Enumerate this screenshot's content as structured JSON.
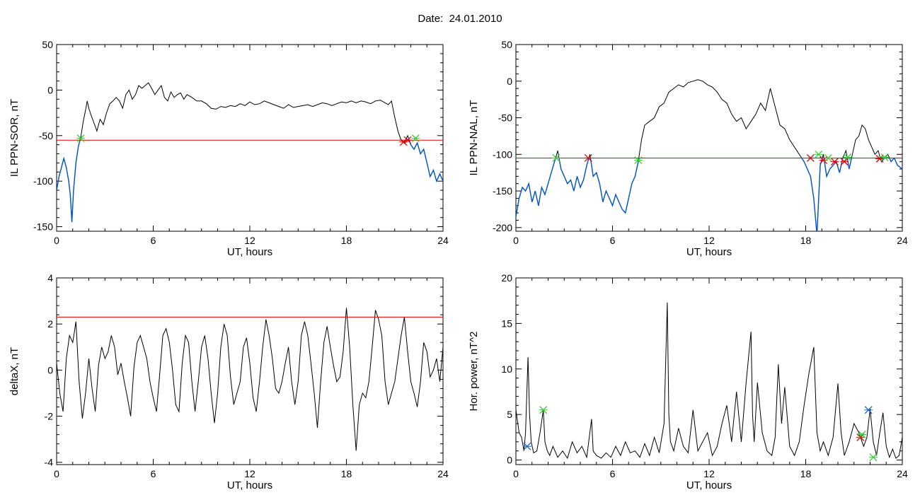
{
  "page": {
    "date_label": "Date:",
    "date_value": "24.01.2010"
  },
  "colors": {
    "frame": "#000000",
    "trace": "#000000",
    "highlight_trace": "#0055cc",
    "threshold": "#e00000",
    "marker_green": "#33cc33",
    "marker_red": "#e00000",
    "marker_blue": "#2266cc"
  },
  "chart_data": [
    {
      "type": "line",
      "ylabel": "IL PPN-SOR, nT",
      "xlabel": "UT, hours",
      "xlim": [
        0,
        24
      ],
      "ylim": [
        -155,
        50
      ],
      "xticks": [
        0,
        6,
        12,
        18,
        24
      ],
      "yticks": [
        -150,
        -100,
        -50,
        0,
        50
      ],
      "threshold": -55,
      "highlight_below_threshold": true,
      "series": [
        {
          "x": [
            0,
            0.15,
            0.3,
            0.45,
            0.6,
            0.75,
            0.85,
            0.95,
            1.05,
            1.2,
            1.35,
            1.5,
            1.65,
            1.8,
            1.9,
            2.0,
            2.15,
            2.3,
            2.5,
            2.7,
            2.9,
            3.1,
            3.3,
            3.5,
            3.7,
            3.9,
            4.1,
            4.3,
            4.5,
            4.7,
            4.9,
            5.1,
            5.3,
            5.5,
            5.7,
            5.9,
            6.1,
            6.3,
            6.5,
            6.7,
            6.9,
            7.1,
            7.3,
            7.5,
            7.7,
            7.9,
            8.1,
            8.4,
            8.7,
            9.0,
            9.3,
            9.6,
            9.9,
            10.2,
            10.5,
            10.8,
            11.1,
            11.4,
            11.7,
            12.0,
            12.3,
            12.6,
            12.9,
            13.2,
            13.5,
            13.8,
            14.1,
            14.4,
            14.7,
            15.0,
            15.3,
            15.6,
            15.9,
            16.2,
            16.5,
            16.8,
            17.1,
            17.4,
            17.7,
            18.0,
            18.3,
            18.6,
            18.9,
            19.2,
            19.5,
            19.8,
            20.1,
            20.4,
            20.6,
            20.8,
            21.0,
            21.2,
            21.4,
            21.6,
            21.8,
            22.0,
            22.2,
            22.4,
            22.6,
            22.8,
            23.0,
            23.2,
            23.4,
            23.6,
            23.8,
            24.0
          ],
          "y": [
            -110,
            -95,
            -85,
            -75,
            -85,
            -100,
            -115,
            -145,
            -110,
            -80,
            -62,
            -52,
            -35,
            -22,
            -12,
            -20,
            -28,
            -35,
            -45,
            -32,
            -38,
            -25,
            -15,
            -12,
            -8,
            -12,
            -20,
            -5,
            0,
            -10,
            -5,
            5,
            2,
            5,
            8,
            2,
            -5,
            0,
            5,
            -8,
            -12,
            -2,
            -8,
            -5,
            -3,
            -10,
            -5,
            -8,
            -12,
            -12,
            -15,
            -20,
            -21,
            -18,
            -19,
            -17,
            -18,
            -15,
            -17,
            -13,
            -16,
            -15,
            -12,
            -14,
            -16,
            -18,
            -20,
            -16,
            -19,
            -18,
            -17,
            -16,
            -18,
            -16,
            -14,
            -15,
            -17,
            -15,
            -13,
            -14,
            -12,
            -14,
            -12,
            -13,
            -15,
            -12,
            -11,
            -14,
            -16,
            -12,
            -30,
            -45,
            -55,
            -58,
            -50,
            -60,
            -65,
            -58,
            -70,
            -65,
            -80,
            -95,
            -88,
            -100,
            -92,
            -100
          ]
        }
      ],
      "markers": [
        {
          "x": 1.5,
          "y": -53,
          "color": "green"
        },
        {
          "x": 21.55,
          "y": -57,
          "color": "red"
        },
        {
          "x": 21.8,
          "y": -55,
          "color": "red"
        },
        {
          "x": 22.3,
          "y": -53,
          "color": "green"
        }
      ]
    },
    {
      "type": "line",
      "ylabel": "IL PPN-NAL, nT",
      "xlabel": "UT, hours",
      "xlim": [
        0,
        24
      ],
      "ylim": [
        -205,
        50
      ],
      "xticks": [
        0,
        6,
        12,
        18,
        24
      ],
      "yticks": [
        -200,
        -150,
        -100,
        -50,
        0,
        50
      ],
      "threshold": -105,
      "highlight_below_threshold": true,
      "series": [
        {
          "x": [
            0,
            0.2,
            0.4,
            0.6,
            0.8,
            1.0,
            1.2,
            1.4,
            1.6,
            1.8,
            2.0,
            2.2,
            2.4,
            2.6,
            2.8,
            3.0,
            3.2,
            3.4,
            3.6,
            3.8,
            4.0,
            4.2,
            4.4,
            4.6,
            4.8,
            5.0,
            5.2,
            5.4,
            5.6,
            5.8,
            6.0,
            6.2,
            6.4,
            6.6,
            6.8,
            7.0,
            7.2,
            7.4,
            7.6,
            7.8,
            8.0,
            8.3,
            8.6,
            8.9,
            9.2,
            9.5,
            9.8,
            10.1,
            10.4,
            10.7,
            11.0,
            11.3,
            11.6,
            11.9,
            12.2,
            12.5,
            12.8,
            13.1,
            13.4,
            13.7,
            14.0,
            14.3,
            14.6,
            14.9,
            15.2,
            15.5,
            15.8,
            16.1,
            16.4,
            16.7,
            17.0,
            17.3,
            17.6,
            17.9,
            18.1,
            18.3,
            18.5,
            18.7,
            18.9,
            19.1,
            19.3,
            19.5,
            19.7,
            19.9,
            20.1,
            20.3,
            20.5,
            20.7,
            20.9,
            21.1,
            21.3,
            21.5,
            21.7,
            21.9,
            22.1,
            22.3,
            22.5,
            22.7,
            22.9,
            23.1,
            23.3,
            23.5,
            23.7,
            24.0
          ],
          "y": [
            -185,
            -160,
            -145,
            -150,
            -140,
            -165,
            -150,
            -170,
            -145,
            -155,
            -140,
            -125,
            -110,
            -95,
            -120,
            -130,
            -140,
            -135,
            -150,
            -130,
            -145,
            -135,
            -115,
            -100,
            -130,
            -125,
            -140,
            -165,
            -150,
            -160,
            -170,
            -155,
            -165,
            -175,
            -180,
            -160,
            -140,
            -130,
            -110,
            -80,
            -60,
            -55,
            -50,
            -35,
            -30,
            -15,
            -10,
            -5,
            -8,
            -2,
            0,
            2,
            0,
            -5,
            -8,
            -15,
            -25,
            -30,
            -45,
            -55,
            -50,
            -65,
            -55,
            -45,
            -30,
            -40,
            -10,
            -35,
            -60,
            -65,
            -80,
            -90,
            -100,
            -110,
            -120,
            -130,
            -160,
            -210,
            -115,
            -100,
            -130,
            -120,
            -115,
            -110,
            -125,
            -105,
            -95,
            -120,
            -100,
            -80,
            -75,
            -60,
            -65,
            -80,
            -90,
            -100,
            -95,
            -110,
            -105,
            -100,
            -110,
            -105,
            -115,
            -120
          ]
        }
      ],
      "markers": [
        {
          "x": 2.5,
          "y": -105,
          "color": "green"
        },
        {
          "x": 4.5,
          "y": -105,
          "color": "red"
        },
        {
          "x": 7.6,
          "y": -108,
          "color": "green"
        },
        {
          "x": 18.3,
          "y": -105,
          "color": "red"
        },
        {
          "x": 18.8,
          "y": -100,
          "color": "green"
        },
        {
          "x": 19.1,
          "y": -108,
          "color": "red"
        },
        {
          "x": 19.4,
          "y": -105,
          "color": "green"
        },
        {
          "x": 19.8,
          "y": -110,
          "color": "red"
        },
        {
          "x": 20.4,
          "y": -110,
          "color": "red"
        },
        {
          "x": 20.6,
          "y": -104,
          "color": "green"
        },
        {
          "x": 22.6,
          "y": -106,
          "color": "red"
        },
        {
          "x": 22.9,
          "y": -104,
          "color": "green"
        }
      ]
    },
    {
      "type": "line",
      "ylabel": "deltaX, nT",
      "xlabel": "UT, hours",
      "xlim": [
        0,
        24
      ],
      "ylim": [
        -4.1,
        4
      ],
      "xticks": [
        0,
        6,
        12,
        18,
        24
      ],
      "yticks": [
        -4,
        -2,
        0,
        2,
        4
      ],
      "threshold": 2.3,
      "highlight_below_threshold": false,
      "series": [
        {
          "x": [
            0,
            0.2,
            0.4,
            0.6,
            0.8,
            1.0,
            1.2,
            1.4,
            1.6,
            1.8,
            2.0,
            2.2,
            2.4,
            2.6,
            2.8,
            3.0,
            3.2,
            3.4,
            3.6,
            3.8,
            4.0,
            4.2,
            4.4,
            4.6,
            4.8,
            5.0,
            5.2,
            5.4,
            5.6,
            5.8,
            6.0,
            6.2,
            6.4,
            6.6,
            6.8,
            7.0,
            7.2,
            7.4,
            7.6,
            7.8,
            8.0,
            8.2,
            8.4,
            8.6,
            8.8,
            9.0,
            9.2,
            9.4,
            9.6,
            9.8,
            10.0,
            10.2,
            10.4,
            10.6,
            10.8,
            11.0,
            11.2,
            11.4,
            11.6,
            11.8,
            12.0,
            12.2,
            12.4,
            12.6,
            12.8,
            13.0,
            13.2,
            13.4,
            13.6,
            13.8,
            14.0,
            14.2,
            14.4,
            14.6,
            14.8,
            15.0,
            15.2,
            15.4,
            15.6,
            15.8,
            16.0,
            16.2,
            16.4,
            16.6,
            16.8,
            17.0,
            17.2,
            17.4,
            17.6,
            17.8,
            18.0,
            18.2,
            18.4,
            18.6,
            18.8,
            19.0,
            19.2,
            19.4,
            19.6,
            19.8,
            20.0,
            20.2,
            20.4,
            20.6,
            20.8,
            21.0,
            21.2,
            21.4,
            21.6,
            21.8,
            22.0,
            22.2,
            22.4,
            22.6,
            22.8,
            23.0,
            23.2,
            23.4,
            23.6,
            23.8,
            24.0
          ],
          "y": [
            0.3,
            -1.0,
            -1.8,
            0.5,
            1.5,
            1.2,
            2.1,
            -0.5,
            -2.1,
            -1.0,
            0.5,
            -0.8,
            -1.8,
            0.2,
            1.0,
            0.5,
            0.8,
            1.5,
            1.0,
            -0.2,
            0.3,
            -0.5,
            -1.2,
            -2.0,
            0.1,
            1.2,
            1.5,
            1.0,
            0.5,
            -0.5,
            -1.2,
            -1.8,
            -0.2,
            1.5,
            1.8,
            1.2,
            0.0,
            -1.5,
            -1.8,
            0.3,
            1.5,
            1.2,
            -0.5,
            -1.8,
            -0.5,
            1.0,
            1.5,
            0.5,
            -1.0,
            -2.3,
            -1.0,
            1.0,
            2.0,
            1.5,
            -0.3,
            -1.5,
            -1.0,
            -0.5,
            1.0,
            1.4,
            0.3,
            -1.2,
            -1.8,
            -0.5,
            1.0,
            2.2,
            1.5,
            0.5,
            -0.8,
            -1.0,
            -0.5,
            0.3,
            1.0,
            -0.5,
            -1.5,
            -0.5,
            1.5,
            2.1,
            1.5,
            0.3,
            -1.0,
            -2.5,
            -0.5,
            1.2,
            1.9,
            1.0,
            0.2,
            -0.5,
            -0.3,
            0.8,
            2.7,
            1.0,
            -1.5,
            -3.5,
            -1.5,
            -1.0,
            -1.2,
            -0.5,
            1.0,
            2.6,
            2.2,
            1.5,
            -0.5,
            -1.5,
            -1.0,
            -0.5,
            0.5,
            1.5,
            2.3,
            0.8,
            -0.5,
            -1.0,
            -1.6,
            -0.5,
            1.2,
            0.8,
            -0.3,
            0.0,
            0.5,
            -0.5,
            1.0
          ]
        }
      ],
      "markers": []
    },
    {
      "type": "line",
      "ylabel": "Hor. power, nT^2",
      "xlabel": "UT, hours",
      "xlim": [
        0,
        24
      ],
      "ylim": [
        -0.5,
        20
      ],
      "xticks": [
        0,
        6,
        12,
        18,
        24
      ],
      "yticks": [
        0,
        5,
        10,
        15,
        20
      ],
      "threshold": null,
      "highlight_below_threshold": false,
      "series": [
        {
          "x": [
            0,
            0.2,
            0.35,
            0.5,
            0.6,
            0.75,
            0.85,
            0.95,
            1.1,
            1.3,
            1.5,
            1.7,
            1.8,
            1.95,
            2.1,
            2.3,
            2.6,
            2.9,
            3.2,
            3.5,
            3.8,
            4.1,
            4.4,
            4.7,
            4.8,
            5.0,
            5.3,
            5.6,
            5.9,
            6.2,
            6.5,
            6.8,
            7.1,
            7.4,
            7.7,
            8.0,
            8.3,
            8.6,
            8.9,
            9.2,
            9.4,
            9.5,
            9.6,
            9.8,
            10.1,
            10.4,
            10.7,
            11.0,
            11.3,
            11.6,
            11.9,
            12.2,
            12.5,
            12.8,
            13.1,
            13.4,
            13.7,
            14.0,
            14.3,
            14.6,
            14.7,
            14.8,
            15.0,
            15.3,
            15.6,
            15.9,
            16.1,
            16.3,
            16.5,
            16.7,
            17.0,
            17.3,
            17.6,
            17.9,
            18.2,
            18.5,
            18.7,
            18.9,
            19.1,
            19.4,
            19.7,
            20.0,
            20.2,
            20.4,
            20.7,
            21.0,
            21.3,
            21.6,
            21.8,
            22.0,
            22.2,
            22.4,
            22.6,
            22.8,
            23.0,
            23.2,
            23.4,
            23.6,
            23.8,
            24.0
          ],
          "y": [
            5.5,
            3.0,
            2.5,
            1.0,
            3.0,
            11.3,
            5.0,
            2.0,
            0.8,
            1.0,
            3.0,
            5.5,
            2.0,
            1.0,
            0.5,
            1.5,
            0.3,
            1.0,
            0.2,
            2.0,
            0.8,
            1.5,
            0.3,
            4.5,
            1.0,
            0.5,
            0.2,
            0.8,
            0.3,
            1.5,
            0.5,
            2.0,
            0.8,
            1.0,
            0.3,
            1.8,
            0.5,
            2.5,
            0.8,
            4.0,
            17.3,
            5.0,
            2.0,
            1.0,
            3.5,
            1.5,
            0.8,
            5.5,
            1.0,
            2.0,
            3.0,
            0.5,
            1.5,
            4.0,
            6.0,
            2.0,
            7.5,
            2.0,
            8.5,
            14.1,
            5.0,
            2.0,
            8.5,
            3.0,
            1.0,
            0.5,
            2.5,
            10.5,
            4.0,
            8.0,
            1.5,
            0.5,
            2.0,
            6.0,
            9.5,
            12.4,
            3.0,
            1.0,
            2.0,
            0.5,
            2.5,
            8.4,
            3.0,
            0.5,
            2.0,
            4.0,
            3.0,
            1.5,
            2.5,
            5.6,
            2.0,
            0.5,
            3.0,
            5.2,
            1.5,
            0.3,
            1.2,
            0.2,
            0.5,
            2.5
          ]
        }
      ],
      "markers": [
        {
          "x": 0.7,
          "y": 1.5,
          "color": "blue"
        },
        {
          "x": 1.7,
          "y": 5.5,
          "color": "green"
        },
        {
          "x": 21.4,
          "y": 2.5,
          "color": "red"
        },
        {
          "x": 21.5,
          "y": 2.8,
          "color": "green"
        },
        {
          "x": 21.9,
          "y": 5.5,
          "color": "blue"
        },
        {
          "x": 22.2,
          "y": 0.3,
          "color": "green"
        }
      ]
    }
  ]
}
